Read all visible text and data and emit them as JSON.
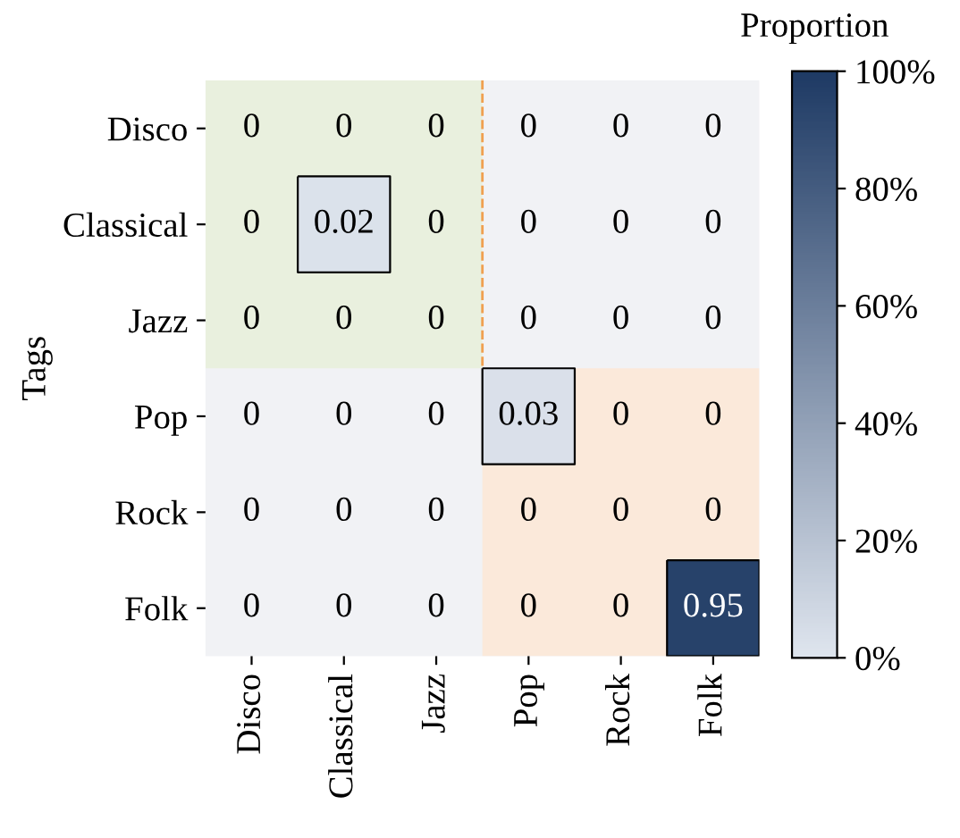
{
  "chart_data": {
    "type": "heatmap",
    "ylabel": "Tags",
    "clabel": "Proportion",
    "categories": [
      "Disco",
      "Classical",
      "Jazz",
      "Pop",
      "Rock",
      "Folk"
    ],
    "y_categories": [
      "Disco",
      "Classical",
      "Jazz",
      "Pop",
      "Rock",
      "Folk"
    ],
    "cells": [
      [
        null,
        null,
        null,
        null,
        null,
        null
      ],
      [
        null,
        0.02,
        null,
        null,
        null,
        null
      ],
      [
        null,
        null,
        null,
        null,
        null,
        null
      ],
      [
        null,
        null,
        null,
        0.03,
        null,
        null
      ],
      [
        null,
        null,
        null,
        null,
        null,
        null
      ],
      [
        null,
        null,
        null,
        null,
        null,
        0.95
      ]
    ],
    "cell_labels": [
      [
        "0",
        "0",
        "0",
        "0",
        "0",
        "0"
      ],
      [
        "0",
        "0.02",
        "0",
        "0",
        "0",
        "0"
      ],
      [
        "0",
        "0",
        "0",
        "0",
        "0",
        "0"
      ],
      [
        "0",
        "0",
        "0",
        "0.03",
        "0",
        "0"
      ],
      [
        "0",
        "0",
        "0",
        "0",
        "0",
        "0"
      ],
      [
        "0",
        "0",
        "0",
        "0",
        "0",
        "0.95"
      ]
    ],
    "clim": [
      0,
      1
    ],
    "cticks": [
      {
        "value": 0,
        "label": "0%"
      },
      {
        "value": 0.2,
        "label": "20%"
      },
      {
        "value": 0.4,
        "label": "40%"
      },
      {
        "value": 0.6,
        "label": "60%"
      },
      {
        "value": 0.8,
        "label": "80%"
      },
      {
        "value": 1,
        "label": "100%"
      }
    ],
    "bands": [
      {
        "axis": "x",
        "from": "Disco",
        "to": "Jazz",
        "color": "#e9f0de"
      },
      {
        "axis": "x",
        "from": "Pop",
        "to": "Folk",
        "color": "#fbe9da"
      }
    ]
  }
}
